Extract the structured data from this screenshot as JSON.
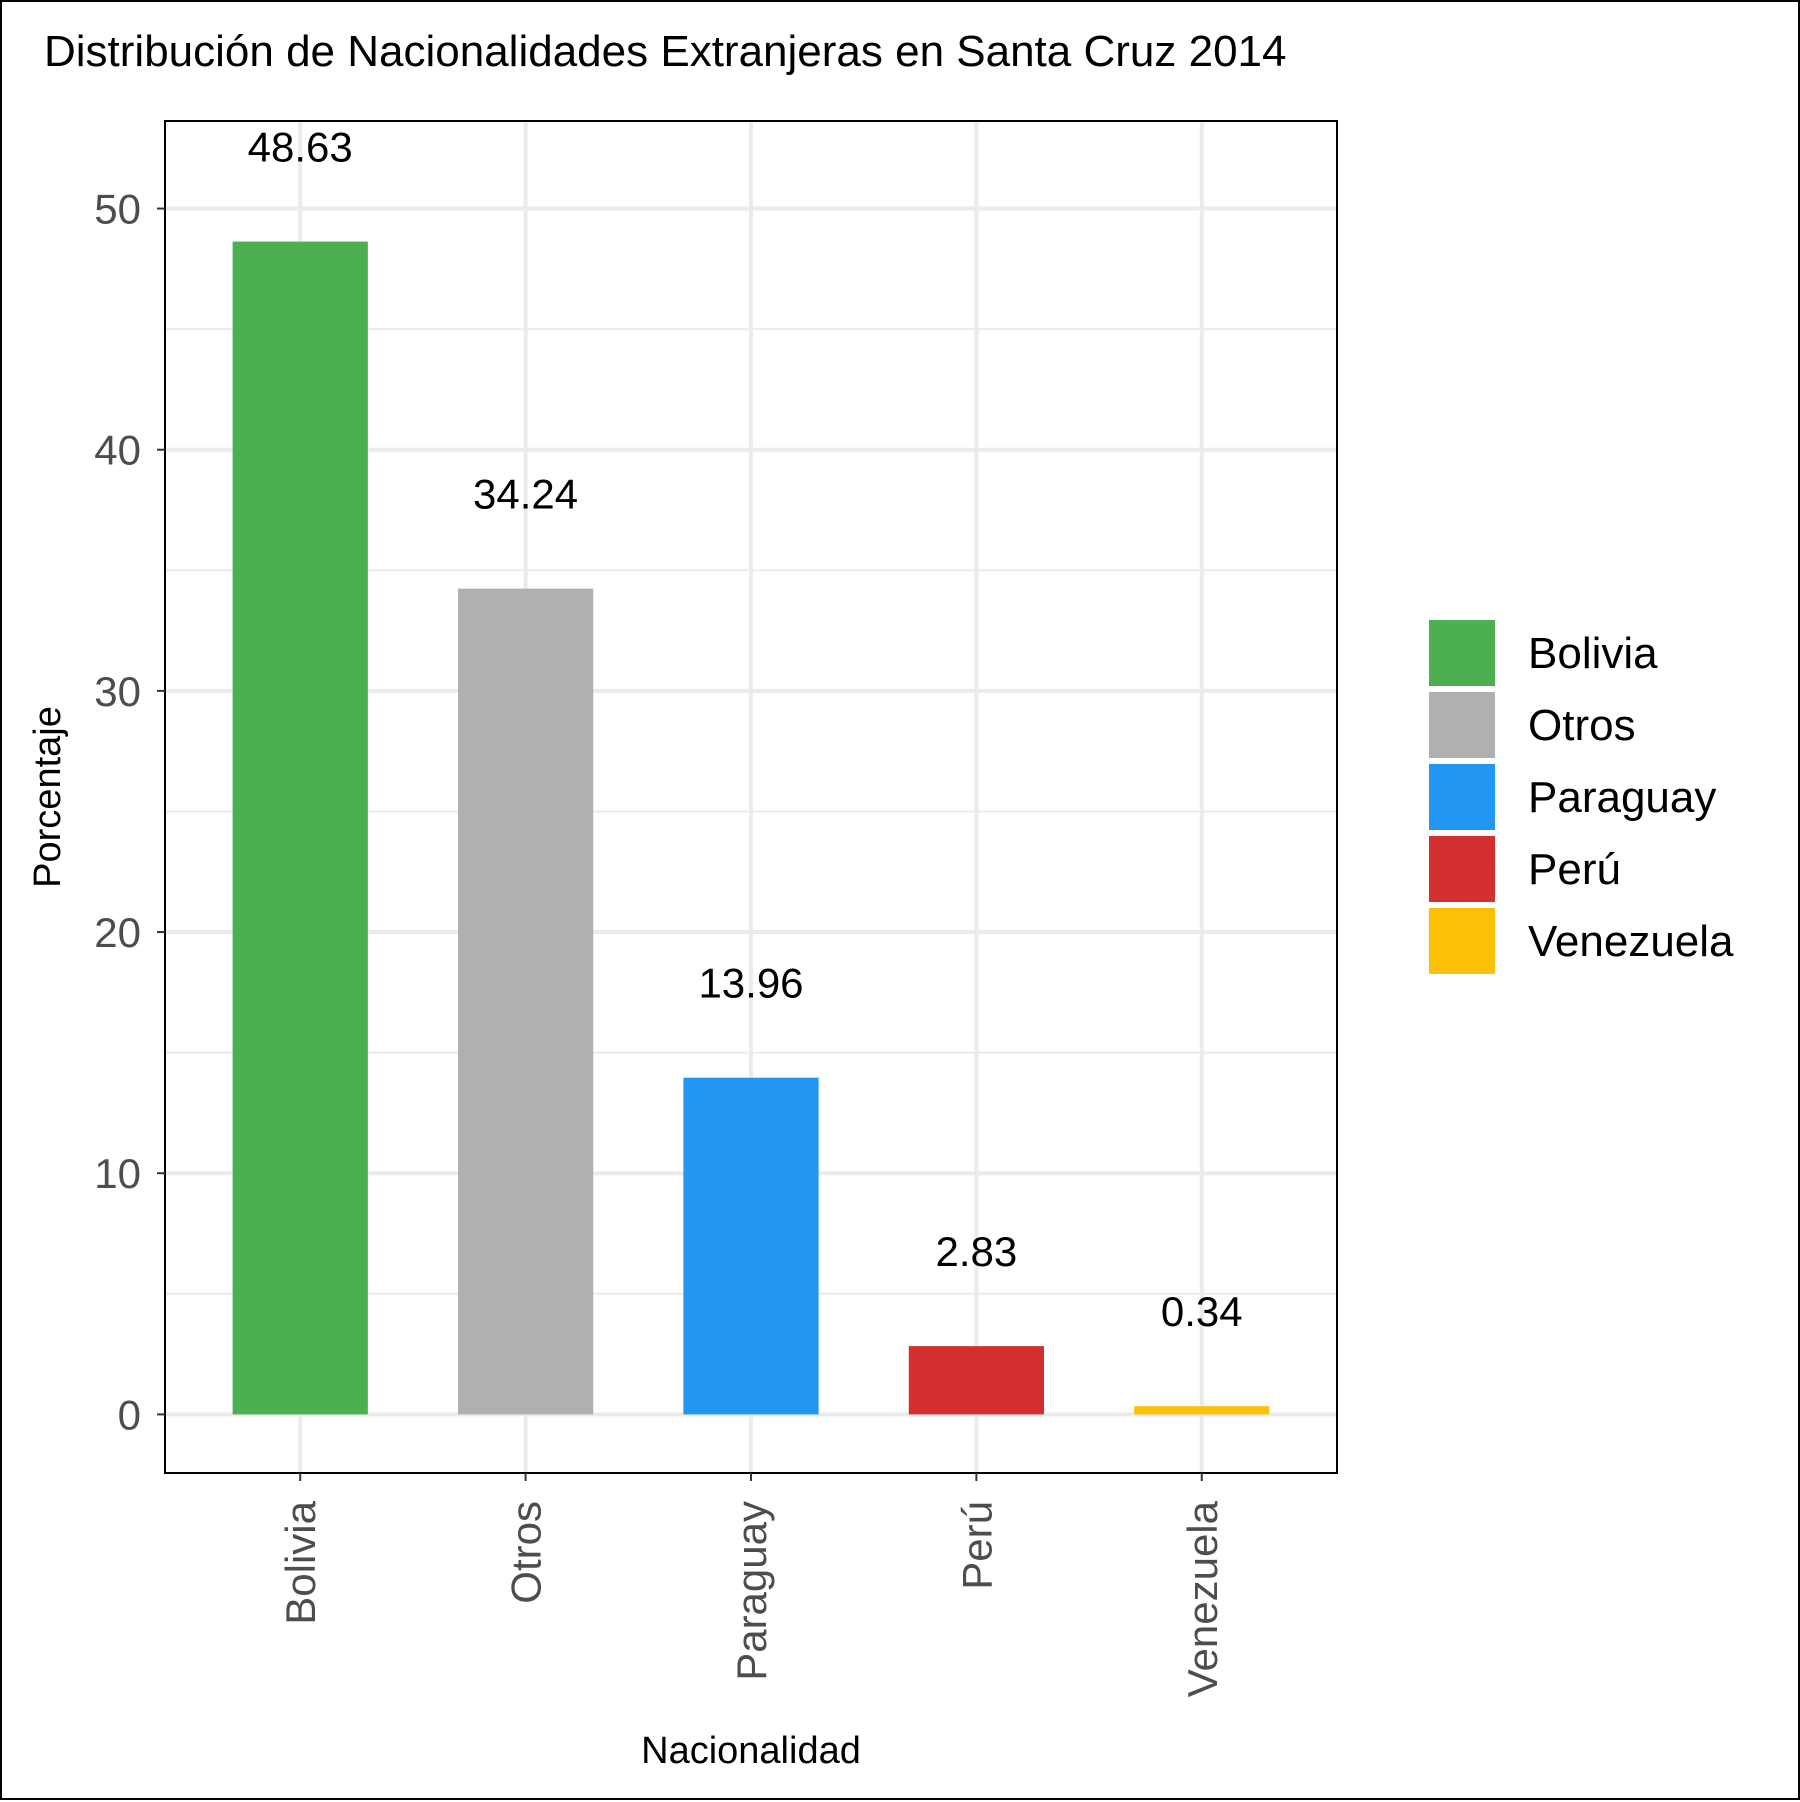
{
  "chart_data": {
    "type": "bar",
    "title": "Distribución de Nacionalidades Extranjeras en Santa Cruz 2014",
    "xlabel": "Nacionalidad",
    "ylabel": "Porcentaje",
    "categories": [
      "Bolivia",
      "Otros",
      "Paraguay",
      "Perú",
      "Venezuela"
    ],
    "values": [
      48.63,
      34.24,
      13.96,
      2.83,
      0.34
    ],
    "value_labels": [
      "48.63",
      "34.24",
      "13.96",
      "2.83",
      "0.34"
    ],
    "colors": [
      "#4CAF50",
      "#B0B0B0",
      "#2196F3",
      "#D32F2F",
      "#FFC107"
    ],
    "yticks": [
      0,
      10,
      20,
      30,
      40,
      50
    ],
    "ytick_labels": [
      "0",
      "10",
      "20",
      "30",
      "40",
      "50"
    ],
    "ylim": [
      -2.43,
      53.63
    ],
    "grid": true,
    "legend": {
      "position": "right",
      "entries": [
        "Bolivia",
        "Otros",
        "Paraguay",
        "Perú",
        "Venezuela"
      ]
    }
  }
}
